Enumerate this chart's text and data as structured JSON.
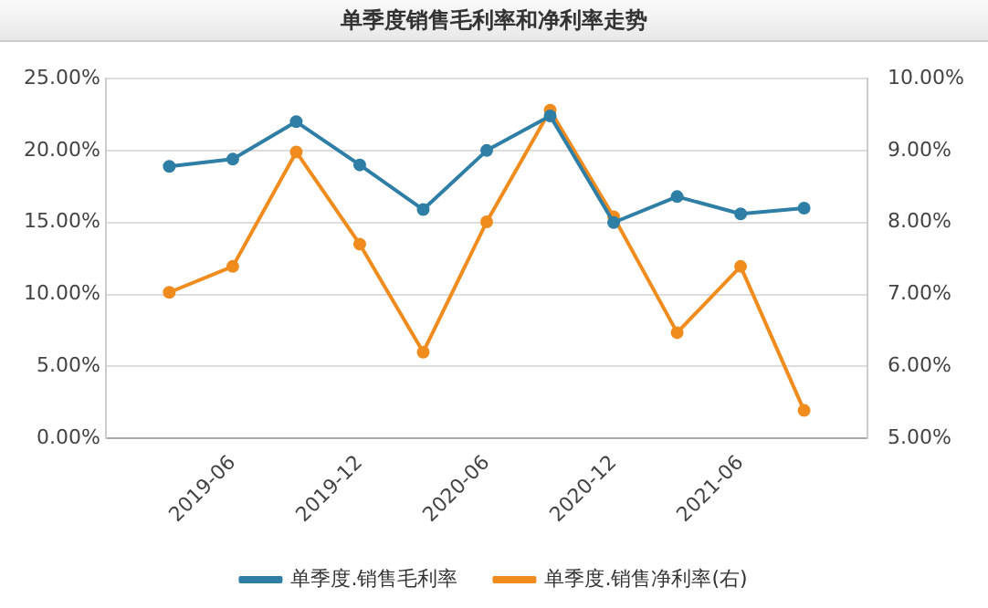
{
  "chart_data": {
    "type": "line",
    "title": "单季度销售毛利率和净利率走势",
    "categories": [
      null,
      "2019-06",
      null,
      "2019-12",
      null,
      "2020-06",
      null,
      "2020-12",
      null,
      "2021-06",
      null
    ],
    "series": [
      {
        "name": "单季度.销售毛利率",
        "color": "#2e7ea6",
        "values": [
          18.9,
          19.4,
          22.0,
          19.0,
          15.9,
          20.0,
          22.4,
          15.0,
          16.8,
          15.6,
          16.0
        ]
      },
      {
        "name": "单季度.销售净利率(右)",
        "color": "#f08c1e",
        "axis": "y2",
        "values": [
          7.03,
          7.39,
          8.98,
          7.7,
          6.2,
          8.01,
          9.56,
          8.08,
          6.47,
          7.39,
          5.39
        ]
      }
    ],
    "ylim": [
      0,
      25
    ],
    "yticks": [
      {
        "value": 0,
        "label": "0.00%"
      },
      {
        "value": 5,
        "label": "5.00%"
      },
      {
        "value": 10,
        "label": "10.00%"
      },
      {
        "value": 15,
        "label": "15.00%"
      },
      {
        "value": 20,
        "label": "20.00%"
      },
      {
        "value": 25,
        "label": "25.00%"
      }
    ],
    "y2lim": [
      5,
      10
    ],
    "y2ticks": [
      {
        "value": 5,
        "label": "5.00%"
      },
      {
        "value": 6,
        "label": "6.00%"
      },
      {
        "value": 7,
        "label": "7.00%"
      },
      {
        "value": 8,
        "label": "8.00%"
      },
      {
        "value": 9,
        "label": "9.00%"
      },
      {
        "value": 10,
        "label": "10.00%"
      }
    ],
    "grid": "y",
    "legend": "bottom",
    "marker": "circle",
    "line_style": "solid"
  }
}
